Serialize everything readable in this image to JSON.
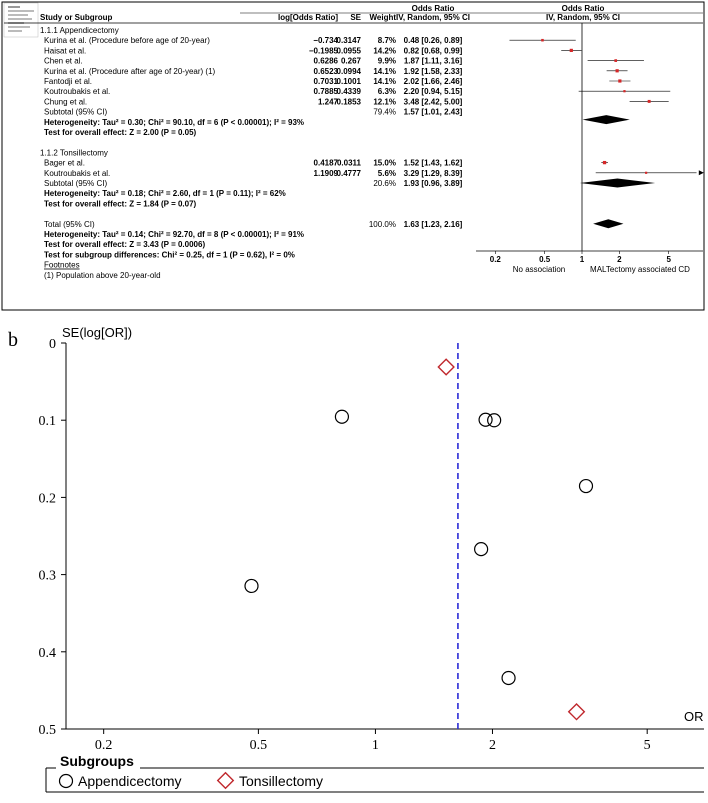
{
  "forest": {
    "type": "table",
    "header": {
      "study": "Study or Subgroup",
      "log_or": "log[Odds Ratio]",
      "se": "SE",
      "weight": "Weight",
      "or_group": "Odds Ratio",
      "or_sub": "IV, Random, 95% CI",
      "plot_group": "Odds Ratio",
      "plot_sub": "IV, Random, 95% CI"
    },
    "subgroups": [
      {
        "title": "1.1.1 Appendicectomy",
        "rows": [
          {
            "name": "Kurina et al. (Procedure before age of 20-year)",
            "log_or": "−0.734",
            "se": "0.3147",
            "weight": "8.7%",
            "ci_text": "0.48 [0.26, 0.89]",
            "or": 0.48,
            "lo": 0.26,
            "hi": 0.89
          },
          {
            "name": "Haisat et al.",
            "log_or": "−0.1985",
            "se": "0.0955",
            "weight": "14.2%",
            "ci_text": "0.82 [0.68, 0.99]",
            "or": 0.82,
            "lo": 0.68,
            "hi": 0.99
          },
          {
            "name": "Chen et al.",
            "log_or": "0.6286",
            "se": "0.267",
            "weight": "9.9%",
            "ci_text": "1.87 [1.11, 3.16]",
            "or": 1.87,
            "lo": 1.11,
            "hi": 3.16
          },
          {
            "name": "Kurina et al. (Procedure after age of 20-year) (1)",
            "log_or": "0.6523",
            "se": "0.0994",
            "weight": "14.1%",
            "ci_text": "1.92 [1.58, 2.33]",
            "or": 1.92,
            "lo": 1.58,
            "hi": 2.33
          },
          {
            "name": "Fantodji  et al.",
            "log_or": "0.7031",
            "se": "0.1001",
            "weight": "14.1%",
            "ci_text": "2.02 [1.66, 2.46]",
            "or": 2.02,
            "lo": 1.66,
            "hi": 2.46
          },
          {
            "name": "Koutroubakis et al.",
            "log_or": "0.7885",
            "se": "0.4339",
            "weight": "6.3%",
            "ci_text": "2.20 [0.94, 5.15]",
            "or": 2.2,
            "lo": 0.94,
            "hi": 5.15
          },
          {
            "name": "Chung  et al.",
            "log_or": "1.247",
            "se": "0.1853",
            "weight": "12.1%",
            "ci_text": "3.48 [2.42, 5.00]",
            "or": 3.48,
            "lo": 2.42,
            "hi": 5.0
          }
        ],
        "subtotal": {
          "label": "Subtotal (95% CI)",
          "weight": "79.4%",
          "ci_text": "1.57 [1.01, 2.43]",
          "or": 1.57,
          "lo": 1.01,
          "hi": 2.43
        },
        "heterogeneity": "Heterogeneity: Tau² = 0.30; Chi² = 90.10, df = 6 (P < 0.00001); I² = 93%",
        "overall": "Test for overall effect: Z = 2.00 (P = 0.05)"
      },
      {
        "title": "1.1.2 Tonsillectomy",
        "rows": [
          {
            "name": "Bager et al.",
            "log_or": "0.4187",
            "se": "0.0311",
            "weight": "15.0%",
            "ci_text": "1.52 [1.43, 1.62]",
            "or": 1.52,
            "lo": 1.43,
            "hi": 1.62
          },
          {
            "name": "Koutroubakis et al.",
            "log_or": "1.1909",
            "se": "0.4777",
            "weight": "5.6%",
            "ci_text": "3.29 [1.29, 8.39]",
            "or": 3.29,
            "lo": 1.29,
            "hi": 8.39
          }
        ],
        "subtotal": {
          "label": "Subtotal (95% CI)",
          "weight": "20.6%",
          "ci_text": "1.93 [0.96, 3.89]",
          "or": 1.93,
          "lo": 0.96,
          "hi": 3.89
        },
        "heterogeneity": "Heterogeneity: Tau² = 0.18; Chi² = 2.60, df = 1 (P = 0.11); I² = 62%",
        "overall": "Test for overall effect: Z = 1.84 (P = 0.07)"
      }
    ],
    "total": {
      "label": "Total (95% CI)",
      "weight": "100.0%",
      "ci_text": "1.63 [1.23, 2.16]",
      "or": 1.63,
      "lo": 1.23,
      "hi": 2.16
    },
    "total_heterogeneity": "Heterogeneity: Tau² = 0.14; Chi² = 92.70, df = 8 (P < 0.00001); I² = 91%",
    "total_overall": "Test for overall effect: Z = 3.43 (P = 0.0006)",
    "subgroup_diff": "Test for subgroup differences: Chi² = 0.25, df = 1 (P = 0.62), I² = 0%",
    "footnotes_title": "Footnotes",
    "footnote": "(1) Population above 20-year-old",
    "axis": {
      "scale": "log",
      "range": [
        0.1,
        10
      ],
      "ticks": [
        "0.2",
        "0.5",
        "1",
        "2",
        "5"
      ],
      "tick_values": [
        0.2,
        0.5,
        1,
        2,
        5
      ],
      "left_label": "No association",
      "right_label": "MALTectomy associated CD"
    },
    "colors": {
      "point": "#d62728",
      "diamond": "#000000"
    }
  },
  "chart_data": {
    "type": "scatter",
    "panel_label": "b",
    "ylabel": "SE(log[OR])",
    "xlabel": "OR",
    "xscale": "log",
    "xlim": [
      0.16,
      7
    ],
    "ylim": [
      0,
      0.5
    ],
    "y_inverted": true,
    "x_ticks": [
      "0.2",
      "0.5",
      "1",
      "2",
      "5"
    ],
    "x_tick_values": [
      0.2,
      0.5,
      1,
      2,
      5
    ],
    "y_ticks": [
      "0",
      "0.1",
      "0.2",
      "0.3",
      "0.4",
      "0.5"
    ],
    "y_tick_values": [
      0,
      0.1,
      0.2,
      0.3,
      0.4,
      0.5
    ],
    "reference_line": {
      "x": 1.63,
      "style": "dashed",
      "color": "#2b2bd6"
    },
    "series": [
      {
        "name": "Appendicectomy",
        "marker": "circle",
        "color": "#000000",
        "points": [
          [
            0.48,
            0.3147
          ],
          [
            0.82,
            0.0955
          ],
          [
            1.87,
            0.267
          ],
          [
            1.92,
            0.0994
          ],
          [
            2.02,
            0.1001
          ],
          [
            2.2,
            0.4339
          ],
          [
            3.48,
            0.1853
          ]
        ]
      },
      {
        "name": "Tonsillectomy",
        "marker": "diamond",
        "color": "#c0282d",
        "points": [
          [
            1.52,
            0.0311
          ],
          [
            3.29,
            0.4777
          ]
        ]
      }
    ],
    "legend": {
      "title": "Subgroups",
      "placement": "bottom"
    }
  }
}
